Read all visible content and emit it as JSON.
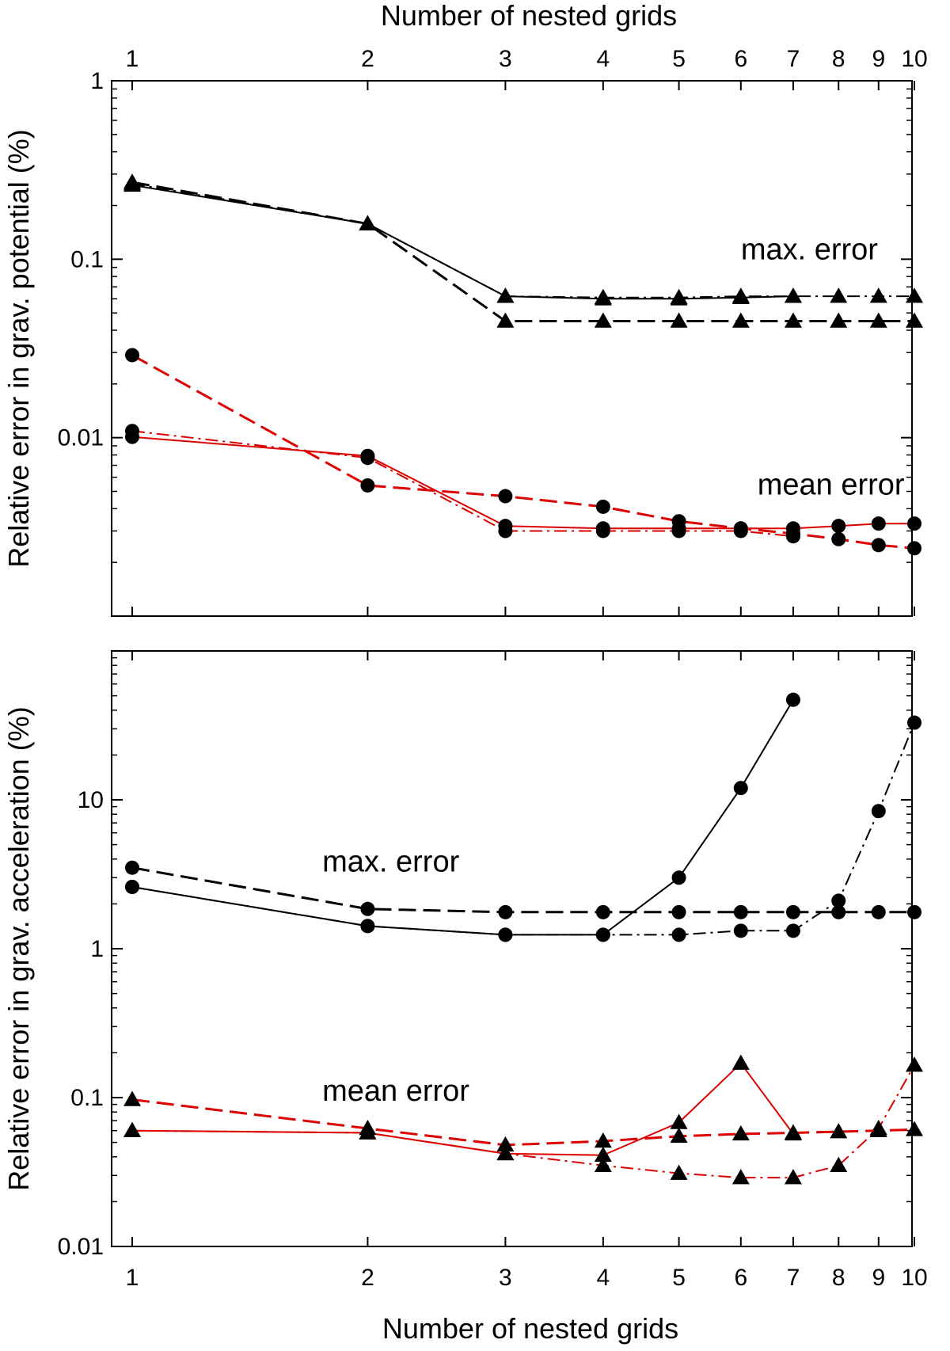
{
  "chart_data": [
    {
      "type": "line",
      "panel": "top",
      "xlabel": "Number of nested grids",
      "xlabel_position": "top",
      "ylabel": "Relative error in grav. potential (%)",
      "x_scale": "log",
      "y_scale": "log",
      "xlim": [
        1,
        10
      ],
      "ylim": [
        0.001,
        1
      ],
      "x_ticks": [
        1,
        2,
        3,
        4,
        5,
        6,
        7,
        8,
        9,
        10
      ],
      "x_tick_labels": [
        "1",
        "2",
        "3",
        "4",
        "5",
        "6",
        "7",
        "8",
        "9",
        "10"
      ],
      "y_ticks": [
        0.01,
        0.1,
        1
      ],
      "y_tick_labels": [
        "0.01",
        "0.1",
        "1"
      ],
      "annotations": [
        {
          "text": "max. error",
          "x": 6,
          "y": 0.1
        },
        {
          "text": "mean error",
          "x": 6.3,
          "y": 0.0048
        }
      ],
      "series": [
        {
          "color": "#000000",
          "line": "solid",
          "marker": "triangle",
          "x": [
            1,
            2,
            3,
            4,
            5,
            6,
            7
          ],
          "y": [
            0.26,
            0.158,
            0.062,
            0.06,
            0.06,
            0.061,
            0.062
          ]
        },
        {
          "color": "#000000",
          "line": "dashdot",
          "marker": "triangle",
          "x": [
            1,
            2,
            3,
            4,
            5,
            6,
            7,
            8,
            9,
            10
          ],
          "y": [
            0.265,
            0.158,
            0.062,
            0.061,
            0.061,
            0.062,
            0.062,
            0.062,
            0.062,
            0.062
          ]
        },
        {
          "color": "#000000",
          "line": "dashed",
          "marker": "triangle",
          "x": [
            1,
            2,
            3,
            4,
            5,
            6,
            7,
            8,
            9,
            10
          ],
          "y": [
            0.27,
            0.158,
            0.045,
            0.045,
            0.045,
            0.045,
            0.045,
            0.045,
            0.045,
            0.045
          ]
        },
        {
          "color": "#dd0000",
          "line": "solid",
          "marker": "circle",
          "x": [
            1,
            2,
            3,
            4,
            5,
            6,
            7,
            8,
            9,
            10
          ],
          "y": [
            0.0101,
            0.0079,
            0.0032,
            0.0031,
            0.0031,
            0.0031,
            0.0031,
            0.0032,
            0.0033,
            0.0033
          ]
        },
        {
          "color": "#dd0000",
          "line": "dashdot",
          "marker": "circle",
          "x": [
            1,
            2,
            3,
            4,
            5,
            6,
            7
          ],
          "y": [
            0.0109,
            0.0077,
            0.003,
            0.003,
            0.003,
            0.003,
            0.0028
          ]
        },
        {
          "color": "#dd0000",
          "line": "dashed",
          "marker": "circle",
          "x": [
            1,
            2,
            3,
            4,
            5,
            6,
            7,
            8,
            9,
            10
          ],
          "y": [
            0.029,
            0.0054,
            0.0047,
            0.0041,
            0.0034,
            0.0031,
            0.0029,
            0.0027,
            0.0025,
            0.0024
          ]
        }
      ]
    },
    {
      "type": "line",
      "panel": "bottom",
      "xlabel": "Number of nested grids",
      "xlabel_position": "bottom",
      "ylabel": "Relative error in grav. acceleration (%)",
      "x_scale": "log",
      "y_scale": "log",
      "xlim": [
        1,
        10
      ],
      "ylim": [
        0.01,
        100
      ],
      "x_ticks": [
        1,
        2,
        3,
        4,
        5,
        6,
        7,
        8,
        9,
        10
      ],
      "x_tick_labels": [
        "1",
        "2",
        "3",
        "4",
        "5",
        "6",
        "7",
        "8",
        "9",
        "10"
      ],
      "y_ticks": [
        0.01,
        0.1,
        1,
        10
      ],
      "y_tick_labels": [
        "0.01",
        "0.1",
        "1",
        "10"
      ],
      "annotations": [
        {
          "text": "max. error",
          "x": 1.75,
          "y": 3.3
        },
        {
          "text": "mean error",
          "x": 1.75,
          "y": 0.095
        }
      ],
      "series": [
        {
          "color": "#000000",
          "line": "solid",
          "marker": "circle",
          "x": [
            1,
            2,
            3,
            4,
            5,
            6,
            7
          ],
          "y": [
            2.6,
            1.42,
            1.24,
            1.24,
            3.0,
            12.0,
            47.0
          ]
        },
        {
          "color": "#000000",
          "line": "dashdot",
          "marker": "circle",
          "x": [
            1,
            2,
            3,
            4,
            5,
            6,
            7,
            8,
            9,
            10
          ],
          "y": [
            2.6,
            1.42,
            1.24,
            1.24,
            1.24,
            1.32,
            1.32,
            2.1,
            8.4,
            33.0
          ]
        },
        {
          "color": "#000000",
          "line": "dashed",
          "marker": "circle",
          "x": [
            1,
            2,
            3,
            4,
            5,
            6,
            7,
            8,
            9,
            10
          ],
          "y": [
            3.5,
            1.85,
            1.76,
            1.76,
            1.76,
            1.76,
            1.76,
            1.76,
            1.76,
            1.76
          ]
        },
        {
          "color": "#dd0000",
          "line": "solid",
          "marker": "triangle",
          "x": [
            1,
            2,
            3,
            4,
            5,
            6,
            7
          ],
          "y": [
            0.06,
            0.058,
            0.042,
            0.041,
            0.068,
            0.17,
            0.057
          ]
        },
        {
          "color": "#dd0000",
          "line": "dashdot",
          "marker": "triangle",
          "x": [
            1,
            2,
            3,
            4,
            5,
            6,
            7,
            8,
            9,
            10
          ],
          "y": [
            0.06,
            0.058,
            0.042,
            0.035,
            0.031,
            0.029,
            0.029,
            0.035,
            0.062,
            0.165
          ]
        },
        {
          "color": "#dd0000",
          "line": "dashed",
          "marker": "triangle",
          "x": [
            1,
            2,
            3,
            4,
            5,
            6,
            7,
            8,
            9,
            10
          ],
          "y": [
            0.097,
            0.062,
            0.048,
            0.051,
            0.055,
            0.057,
            0.058,
            0.059,
            0.06,
            0.061
          ]
        }
      ]
    }
  ]
}
